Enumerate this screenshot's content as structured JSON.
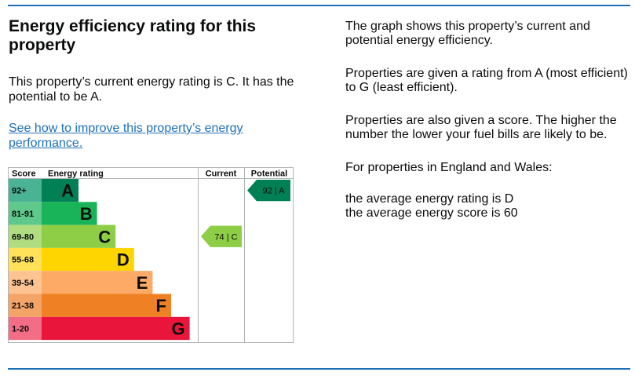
{
  "heading": "Energy efficiency rating for this property",
  "intro": "This property’s current energy rating is C. It has the potential to be A.",
  "link_text": "See how to improve this property’s energy performance.",
  "side": {
    "p1": "The graph shows this property’s current and potential energy efficiency.",
    "p2": "Properties are given a rating from A (most efficient) to G (least efficient).",
    "p3": "Properties are also given a score. The higher the number the lower your fuel bills are likely to be.",
    "p4": "For properties in England and Wales:",
    "p5a": "the average energy rating is D",
    "p5b": "the average energy score is 60"
  },
  "chart_data": {
    "type": "bar",
    "headers": {
      "score": "Score",
      "rating": "Energy rating",
      "current": "Current",
      "potential": "Potential"
    },
    "bands": [
      {
        "score": "92+",
        "letter": "A",
        "color": "#008054",
        "score_bg": "#49b394"
      },
      {
        "score": "81-91",
        "letter": "B",
        "color": "#19b459",
        "score_bg": "#5ec98a"
      },
      {
        "score": "69-80",
        "letter": "C",
        "color": "#8dce46",
        "score_bg": "#b0dd80"
      },
      {
        "score": "55-68",
        "letter": "D",
        "color": "#ffd500",
        "score_bg": "#ffe25a"
      },
      {
        "score": "39-54",
        "letter": "E",
        "color": "#fcaa65",
        "score_bg": "#fdc391"
      },
      {
        "score": "21-38",
        "letter": "F",
        "color": "#ef8023",
        "score_bg": "#f4a466"
      },
      {
        "score": "1-20",
        "letter": "G",
        "color": "#e9153b",
        "score_bg": "#f26d85"
      }
    ],
    "current": {
      "value": 74,
      "letter": "C",
      "label": "74 | C"
    },
    "potential": {
      "value": 92,
      "letter": "A",
      "label": "92 | A"
    }
  }
}
